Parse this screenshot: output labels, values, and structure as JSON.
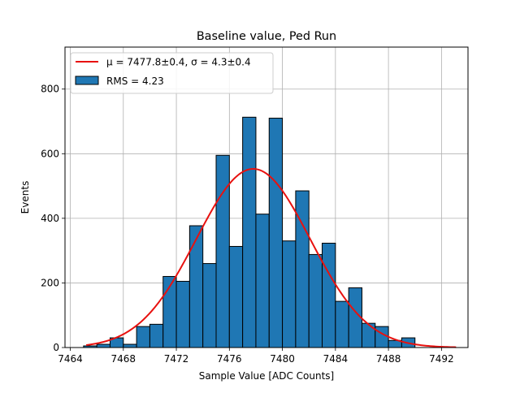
{
  "chart_data": {
    "type": "bar",
    "title": "Baseline value, Ped Run",
    "xlabel": "Sample Value [ADC Counts]",
    "ylabel": "Events",
    "xlim": [
      7463.6,
      7494.0
    ],
    "ylim": [
      0,
      930
    ],
    "xticks": [
      7464,
      7468,
      7472,
      7476,
      7480,
      7484,
      7488,
      7492
    ],
    "yticks": [
      0,
      200,
      400,
      600,
      800
    ],
    "grid": true,
    "legend_position": "top-left",
    "histogram": {
      "name": "RMS = 4.23",
      "color": "#1f77b4",
      "edgecolor": "#000000",
      "bin_edges": [
        7465,
        7466,
        7467,
        7468,
        7469,
        7470,
        7471,
        7472,
        7473,
        7474,
        7475,
        7476,
        7477,
        7478,
        7479,
        7480,
        7481,
        7482,
        7483,
        7484,
        7485,
        7486,
        7487,
        7488,
        7489,
        7490
      ],
      "counts": [
        5,
        10,
        30,
        10,
        65,
        72,
        220,
        205,
        377,
        260,
        595,
        313,
        713,
        413,
        710,
        330,
        485,
        288,
        323,
        143,
        185,
        75,
        65,
        22,
        30
      ]
    },
    "fit": {
      "name": "μ = 7477.8±0.4, σ = 4.3±0.4",
      "color": "#e8110f",
      "mu": 7477.8,
      "sigma": 4.3,
      "amplitude": 553,
      "x_range": [
        7465.2,
        7493.1
      ]
    }
  }
}
